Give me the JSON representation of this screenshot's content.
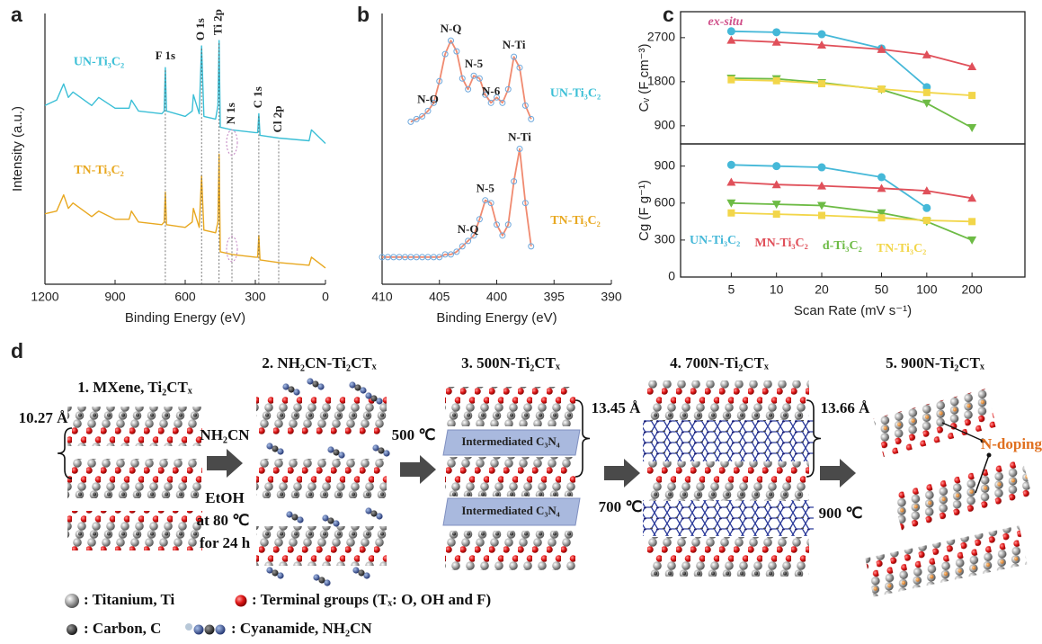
{
  "panel_labels": [
    "a",
    "b",
    "c",
    "d"
  ],
  "chart_data": [
    {
      "type": "line",
      "xlabel": "Binding Energy (eV)",
      "ylabel": "Intensity (a.u.)",
      "x": [
        1200,
        1150,
        1120,
        1100,
        1080,
        1000,
        970,
        900,
        840,
        830,
        800,
        700,
        690,
        685,
        680,
        600,
        570,
        565,
        540,
        530,
        520,
        470,
        460,
        455,
        450,
        400,
        300,
        290,
        285,
        280,
        200,
        70,
        60,
        0
      ],
      "xlim": [
        1200,
        0
      ],
      "xticks": [
        1200,
        900,
        600,
        300,
        0
      ],
      "ylim": [
        0,
        100
      ],
      "series": [
        {
          "name": "UN-Ti₃C₂",
          "color": "#3bbfd6",
          "values": [
            66,
            68,
            74,
            69,
            71,
            66,
            69,
            65,
            65,
            68,
            64,
            63,
            64,
            80,
            64,
            62,
            64,
            70,
            63,
            88,
            62,
            61,
            66,
            90,
            58,
            57,
            56,
            56,
            63,
            55,
            54,
            53,
            57,
            52
          ]
        },
        {
          "name": "TN-Ti₃C₂",
          "color": "#e8a820",
          "values": [
            26,
            27,
            33,
            28,
            30,
            25,
            27,
            24,
            24,
            27,
            23,
            22,
            23,
            34,
            22,
            21,
            23,
            28,
            21,
            40,
            20,
            19,
            23,
            48,
            12,
            11,
            10,
            10,
            18,
            9,
            8,
            7,
            10,
            6
          ]
        }
      ],
      "peak_labels": [
        {
          "label": "F 1s",
          "x": 685
        },
        {
          "label": "O 1s",
          "x": 530
        },
        {
          "label": "Ti 2p",
          "x": 455
        },
        {
          "label": "N 1s",
          "x": 400
        },
        {
          "label": "C 1s",
          "x": 285
        },
        {
          "label": "Cl 2p",
          "x": 200
        }
      ]
    },
    {
      "type": "line",
      "xlabel": "Binding Energy (eV)",
      "xlim": [
        410,
        390
      ],
      "xticks": [
        410,
        405,
        400,
        395,
        390
      ],
      "ylim": [
        0,
        100
      ],
      "series": [
        {
          "name": "UN-Ti₃C₂",
          "color": "#f08a70",
          "marker_color": "#6fa8dc",
          "label_color": "#3bbfd6",
          "x": [
            407.5,
            407,
            406.5,
            406,
            405.5,
            405,
            404.5,
            404,
            403.5,
            403,
            402.5,
            402,
            401.5,
            401,
            400.5,
            400,
            399.5,
            399,
            398.5,
            398,
            397.5,
            397
          ],
          "values": [
            60,
            61,
            62,
            64,
            67,
            75,
            85,
            90,
            86,
            76,
            72,
            77,
            76,
            70,
            67,
            69,
            67,
            72,
            84,
            80,
            66,
            61
          ],
          "peaks": [
            {
              "label": "N-O",
              "x": 406
            },
            {
              "label": "N-Q",
              "x": 404
            },
            {
              "label": "N-5",
              "x": 402
            },
            {
              "label": "N-6",
              "x": 400.5
            },
            {
              "label": "N-Ti",
              "x": 398.5
            }
          ]
        },
        {
          "name": "TN-Ti₃C₂",
          "color": "#f08a70",
          "marker_color": "#6fa8dc",
          "label_color": "#e8a820",
          "x": [
            410,
            409.5,
            409,
            408.5,
            408,
            407.5,
            407,
            406.5,
            406,
            405.5,
            405,
            404.5,
            404,
            403.5,
            403,
            402.5,
            402,
            401.5,
            401,
            400.5,
            400,
            399.5,
            399,
            398.5,
            398,
            397.5,
            397
          ],
          "values": [
            10,
            10,
            10,
            10,
            10,
            10,
            10,
            10,
            10,
            10,
            10,
            11,
            11,
            12,
            14,
            16,
            18,
            24,
            31,
            30,
            22,
            18,
            22,
            38,
            50,
            30,
            14
          ],
          "peaks": [
            {
              "label": "N-Q",
              "x": 402.5
            },
            {
              "label": "N-5",
              "x": 401
            },
            {
              "label": "N-Ti",
              "x": 398
            }
          ]
        }
      ]
    },
    {
      "type": "line",
      "ylabel": "Cᵥ (F cm⁻³)",
      "x": [
        5,
        10,
        20,
        50,
        100,
        200
      ],
      "xscale": "log",
      "xlim": [
        2.3,
        450
      ],
      "ylim": [
        530,
        3230
      ],
      "yticks": [
        900,
        1800,
        2700
      ],
      "annotation": "ex-situ",
      "series": [
        {
          "color": "#45b8d8",
          "marker": "circle",
          "values": [
            2830,
            2810,
            2770,
            2480,
            1690,
            null
          ]
        },
        {
          "color": "#e0505a",
          "marker": "triangle-up",
          "values": [
            2650,
            2610,
            2550,
            2460,
            2350,
            2110
          ]
        },
        {
          "color": "#6dbb45",
          "marker": "triangle-down",
          "values": [
            1870,
            1860,
            1780,
            1640,
            1360,
            860
          ]
        },
        {
          "color": "#f2d64a",
          "marker": "square",
          "values": [
            1840,
            1820,
            1760,
            1650,
            1580,
            1520
          ]
        }
      ]
    },
    {
      "type": "line",
      "xlabel": "Scan Rate (mV s⁻¹)",
      "ylabel": "Cg (F g⁻¹)",
      "x": [
        5,
        10,
        20,
        50,
        100,
        200
      ],
      "xscale": "log",
      "xlim": [
        2.3,
        450
      ],
      "xticks": [
        5,
        10,
        20,
        50,
        100,
        200
      ],
      "ylim": [
        0,
        1080
      ],
      "yticks": [
        0,
        300,
        600,
        900
      ],
      "legend": "lower left",
      "series": [
        {
          "name": "UN-Ti₃C₂",
          "color": "#45b8d8",
          "marker": "circle",
          "values": [
            910,
            900,
            890,
            810,
            560,
            null
          ]
        },
        {
          "name": "MN-Ti₃C₂",
          "color": "#e0505a",
          "marker": "triangle-up",
          "values": [
            770,
            750,
            740,
            720,
            700,
            640
          ]
        },
        {
          "name": "d-Ti₃C₂",
          "color": "#6dbb45",
          "marker": "triangle-down",
          "values": [
            600,
            590,
            580,
            520,
            450,
            300
          ]
        },
        {
          "name": "TN-Ti₃C₂",
          "color": "#f2d64a",
          "marker": "square",
          "values": [
            520,
            510,
            500,
            480,
            460,
            450
          ]
        }
      ]
    }
  ],
  "schematic": {
    "stages": [
      "1. MXene, Ti₂CTₓ",
      "2. NH₂CN-Ti₂CTₓ",
      "3. 500N-Ti₂CTₓ",
      "4. 700N-Ti₂CTₓ",
      "5. 900N-Ti₂CTₓ"
    ],
    "spacings": [
      "10.27 Å",
      "13.45 Å",
      "13.66 Å"
    ],
    "conditions": [
      "NH₂CN",
      "EtOH",
      "at 80 ℃",
      "for 24 h",
      "500 ℃",
      "700 ℃",
      "900 ℃"
    ],
    "intermediate": [
      "Intermediated C₃N₄",
      "Intermediated C₃N₄"
    ],
    "doping": "N-doping",
    "legend": [
      ": Titanium, Ti",
      ": Terminal groups (Tₓ: O, OH and F)",
      ": Carbon, C",
      ": Cyanamide, NH₂CN"
    ]
  }
}
